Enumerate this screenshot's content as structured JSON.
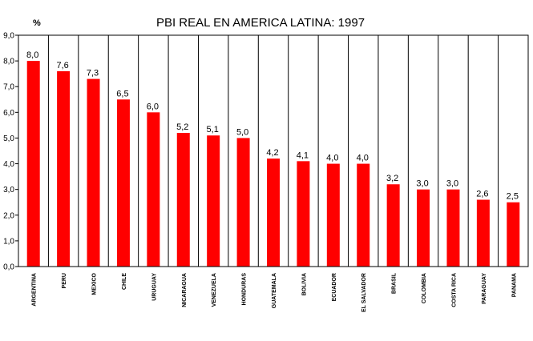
{
  "chart_data": {
    "type": "bar",
    "title": "PBI REAL EN AMERICA LATINA: 1997",
    "ylabel": "%",
    "xlabel": "",
    "ylim": [
      0,
      9
    ],
    "yticks": [
      "0,0",
      "1,0",
      "2,0",
      "3,0",
      "4,0",
      "5,0",
      "6,0",
      "7,0",
      "8,0",
      "9,0"
    ],
    "grid": "vertical",
    "bar_color": "#ff0000",
    "categories": [
      "ARGENTINA",
      "PERU",
      "MEXICO",
      "CHILE",
      "URUGUAY",
      "NICARAGUA",
      "VENEZUELA",
      "HONDURAS",
      "GUATEMALA",
      "BOLIVIA",
      "ECUADOR",
      "EL SALVADOR",
      "BRASIL",
      "COLOMBIA",
      "COSTA RICA",
      "PARAGUAY",
      "PANAMA"
    ],
    "values": [
      8.0,
      7.6,
      7.3,
      6.5,
      6.0,
      5.2,
      5.1,
      5.0,
      4.2,
      4.1,
      4.0,
      4.0,
      3.2,
      3.0,
      3.0,
      2.6,
      2.5
    ],
    "value_labels": [
      "8,0",
      "7,6",
      "7,3",
      "6,5",
      "6,0",
      "5,2",
      "5,1",
      "5,0",
      "4,2",
      "4,1",
      "4,0",
      "4,0",
      "3,2",
      "3,0",
      "3,0",
      "2,6",
      "2,5"
    ]
  }
}
